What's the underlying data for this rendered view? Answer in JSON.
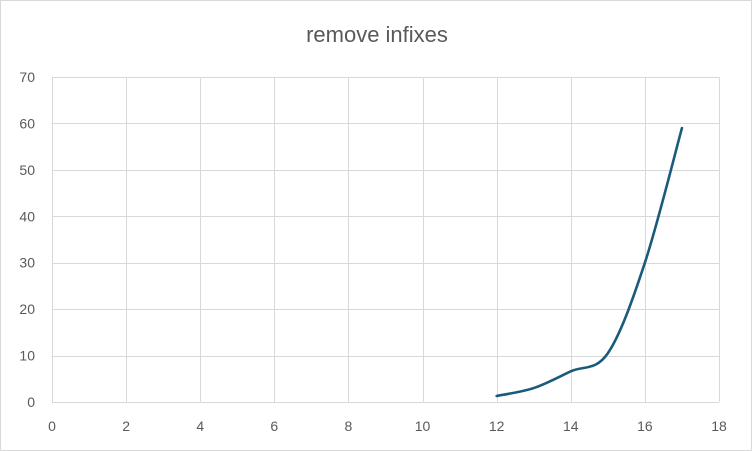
{
  "chart_data": {
    "type": "scatter",
    "mode": "smooth-line",
    "title": "remove infixes",
    "xlabel": "",
    "ylabel": "",
    "xlim": [
      0,
      18
    ],
    "ylim": [
      0,
      70
    ],
    "xticks": [
      0,
      2,
      4,
      6,
      8,
      10,
      12,
      14,
      16,
      18
    ],
    "yticks": [
      0,
      10,
      20,
      30,
      40,
      50,
      60,
      70
    ],
    "grid": true,
    "legend": "none",
    "series": [
      {
        "color": "#1a5b7a",
        "x": [
          12,
          13,
          14,
          15,
          16,
          17
        ],
        "y": [
          1.3,
          3.0,
          6.6,
          10.5,
          30.0,
          59.0
        ]
      }
    ]
  }
}
